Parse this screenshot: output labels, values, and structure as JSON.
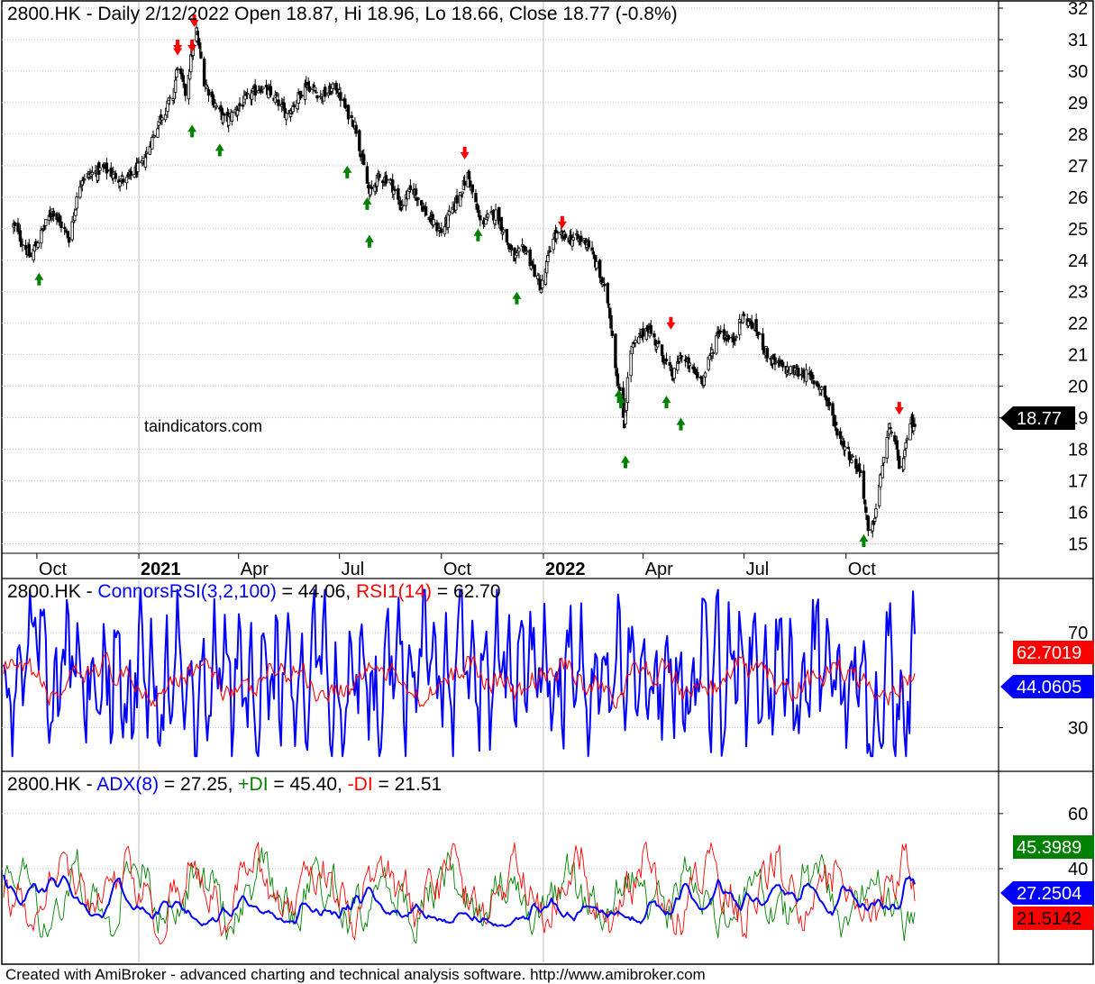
{
  "footer": "Created with AmiBroker - advanced charting and technical analysis software. http://www.amibroker.com",
  "colors": {
    "black": "#000000",
    "blue": "#0000ff",
    "red": "#ff0000",
    "green": "#008000",
    "up_arrow": "#008000",
    "down_arrow": "#ff0000",
    "grid": "#c0c0c0"
  },
  "chart_data": [
    {
      "type": "candlestick",
      "title": {
        "symbol": "2800.HK",
        "text": " - Daily 2/12/2022 Open 18.87, Hi 18.96, Lo 18.66, Close 18.77 (-0.8%)"
      },
      "watermark": "taindicators.com",
      "last_value": "18.77",
      "ylim": [
        14.7,
        32.2
      ],
      "y_ticks": [
        "15",
        "16",
        "17",
        "18",
        "19",
        "20",
        "21",
        "22",
        "23",
        "24",
        "25",
        "26",
        "27",
        "28",
        "29",
        "30",
        "31",
        "32"
      ],
      "x_ticks": [
        "Oct",
        "2021",
        "Apr",
        "Jul",
        "Oct",
        "2022",
        "Apr",
        "Jul",
        "Oct"
      ],
      "x_ticks_bold": [
        "2021",
        "2022"
      ],
      "grid": true,
      "close_anchors": [
        [
          "2020-09-10",
          25.1
        ],
        [
          "2020-09-25",
          24.1
        ],
        [
          "2020-10-15",
          25.6
        ],
        [
          "2020-10-30",
          24.7
        ],
        [
          "2020-11-10",
          26.6
        ],
        [
          "2020-11-30",
          26.9
        ],
        [
          "2020-12-20",
          26.5
        ],
        [
          "2021-01-05",
          27.1
        ],
        [
          "2021-01-20",
          28.5
        ],
        [
          "2021-02-01",
          29.2
        ],
        [
          "2021-02-05",
          30.2
        ],
        [
          "2021-02-12",
          29.3
        ],
        [
          "2021-02-18",
          30.6
        ],
        [
          "2021-02-22",
          31.3
        ],
        [
          "2021-03-01",
          29.7
        ],
        [
          "2021-03-10",
          29.0
        ],
        [
          "2021-03-20",
          28.4
        ],
        [
          "2021-04-05",
          29.0
        ],
        [
          "2021-04-20",
          29.5
        ],
        [
          "2021-05-05",
          29.1
        ],
        [
          "2021-05-15",
          28.6
        ],
        [
          "2021-06-01",
          29.6
        ],
        [
          "2021-06-15",
          29.2
        ],
        [
          "2021-06-28",
          29.5
        ],
        [
          "2021-07-08",
          28.7
        ],
        [
          "2021-07-15",
          28.3
        ],
        [
          "2021-07-28",
          26.1
        ],
        [
          "2021-08-05",
          26.6
        ],
        [
          "2021-08-15",
          26.6
        ],
        [
          "2021-08-25",
          25.7
        ],
        [
          "2021-09-05",
          26.3
        ],
        [
          "2021-09-20",
          25.3
        ],
        [
          "2021-10-01",
          24.9
        ],
        [
          "2021-10-15",
          25.9
        ],
        [
          "2021-10-25",
          26.7
        ],
        [
          "2021-11-05",
          25.2
        ],
        [
          "2021-11-20",
          25.5
        ],
        [
          "2021-12-05",
          24.0
        ],
        [
          "2021-12-15",
          24.4
        ],
        [
          "2021-12-30",
          23.1
        ],
        [
          "2022-01-10",
          24.8
        ],
        [
          "2022-01-25",
          24.7
        ],
        [
          "2022-02-10",
          24.6
        ],
        [
          "2022-02-20",
          23.6
        ],
        [
          "2022-03-01",
          22.6
        ],
        [
          "2022-03-08",
          20.4
        ],
        [
          "2022-03-15",
          18.8
        ],
        [
          "2022-03-20",
          21.1
        ],
        [
          "2022-04-05",
          21.9
        ],
        [
          "2022-04-18",
          21.0
        ],
        [
          "2022-04-28",
          20.3
        ],
        [
          "2022-05-05",
          21.0
        ],
        [
          "2022-05-15",
          20.5
        ],
        [
          "2022-05-25",
          20.2
        ],
        [
          "2022-06-08",
          21.8
        ],
        [
          "2022-06-20",
          21.4
        ],
        [
          "2022-06-30",
          22.2
        ],
        [
          "2022-07-10",
          21.9
        ],
        [
          "2022-07-25",
          20.8
        ],
        [
          "2022-08-10",
          20.5
        ],
        [
          "2022-08-25",
          20.4
        ],
        [
          "2022-09-10",
          19.9
        ],
        [
          "2022-09-25",
          18.4
        ],
        [
          "2022-10-08",
          17.6
        ],
        [
          "2022-10-15",
          17.2
        ],
        [
          "2022-10-22",
          15.0
        ],
        [
          "2022-10-28",
          16.1
        ],
        [
          "2022-11-05",
          18.0
        ],
        [
          "2022-11-10",
          18.8
        ],
        [
          "2022-11-20",
          17.2
        ],
        [
          "2022-11-28",
          18.9
        ],
        [
          "2022-12-02",
          18.77
        ]
      ],
      "buy_signals": [
        [
          "2020-10-03",
          23.6
        ],
        [
          "2021-02-18",
          28.3
        ],
        [
          "2021-03-15",
          27.7
        ],
        [
          "2021-07-08",
          27.0
        ],
        [
          "2021-07-26",
          26.0
        ],
        [
          "2021-07-28",
          24.8
        ],
        [
          "2021-11-03",
          25.0
        ],
        [
          "2021-12-08",
          23.0
        ],
        [
          "2022-03-10",
          19.9
        ],
        [
          "2022-03-12",
          19.7
        ],
        [
          "2022-03-16",
          17.8
        ],
        [
          "2022-04-22",
          19.7
        ],
        [
          "2022-05-05",
          19.0
        ],
        [
          "2022-10-17",
          15.3
        ]
      ],
      "sell_signals": [
        [
          "2021-02-05",
          30.6
        ],
        [
          "2021-02-05",
          30.5
        ],
        [
          "2021-02-18",
          30.6
        ],
        [
          "2021-02-20",
          31.4
        ],
        [
          "2021-10-22",
          27.2
        ],
        [
          "2022-01-18",
          25.0
        ],
        [
          "2022-04-26",
          21.8
        ],
        [
          "2022-11-18",
          19.1
        ]
      ]
    },
    {
      "type": "line",
      "title": {
        "symbol": "2800.HK",
        "sep1": " - ",
        "s1": "ConnorsRSI(3,2,100)",
        "v1": " = 44.06, ",
        "s2": "RSI1(14)",
        "v2": " = 62.70"
      },
      "ylim": [
        12,
        92
      ],
      "y_ticks": [
        "30",
        "70"
      ],
      "grid": true,
      "series": [
        {
          "name": "ConnorsRSI(3,2,100)",
          "color": "#0000ff",
          "last": "44.0605",
          "amp": 34,
          "mean": 52
        },
        {
          "name": "RSI1(14)",
          "color": "#ff0000",
          "last": "62.7019",
          "amp": 11,
          "mean": 50
        }
      ]
    },
    {
      "type": "line",
      "title": {
        "symbol": "2800.HK",
        "sep1": " - ",
        "s1": "ADX(8)",
        "v1": " = 27.25, ",
        "s2": "+DI",
        "v2": " = 45.40, ",
        "s3": "-DI",
        "v3": " = 21.51"
      },
      "ylim": [
        6,
        75
      ],
      "y_ticks": [
        "40",
        "60"
      ],
      "grid": true,
      "series": [
        {
          "name": "ADX(8)",
          "color": "#0000ff",
          "last": "27.2504"
        },
        {
          "name": "+DI",
          "color": "#008000",
          "last": "45.3989"
        },
        {
          "name": "-DI",
          "color": "#ff0000",
          "last": "21.5142"
        }
      ]
    }
  ]
}
